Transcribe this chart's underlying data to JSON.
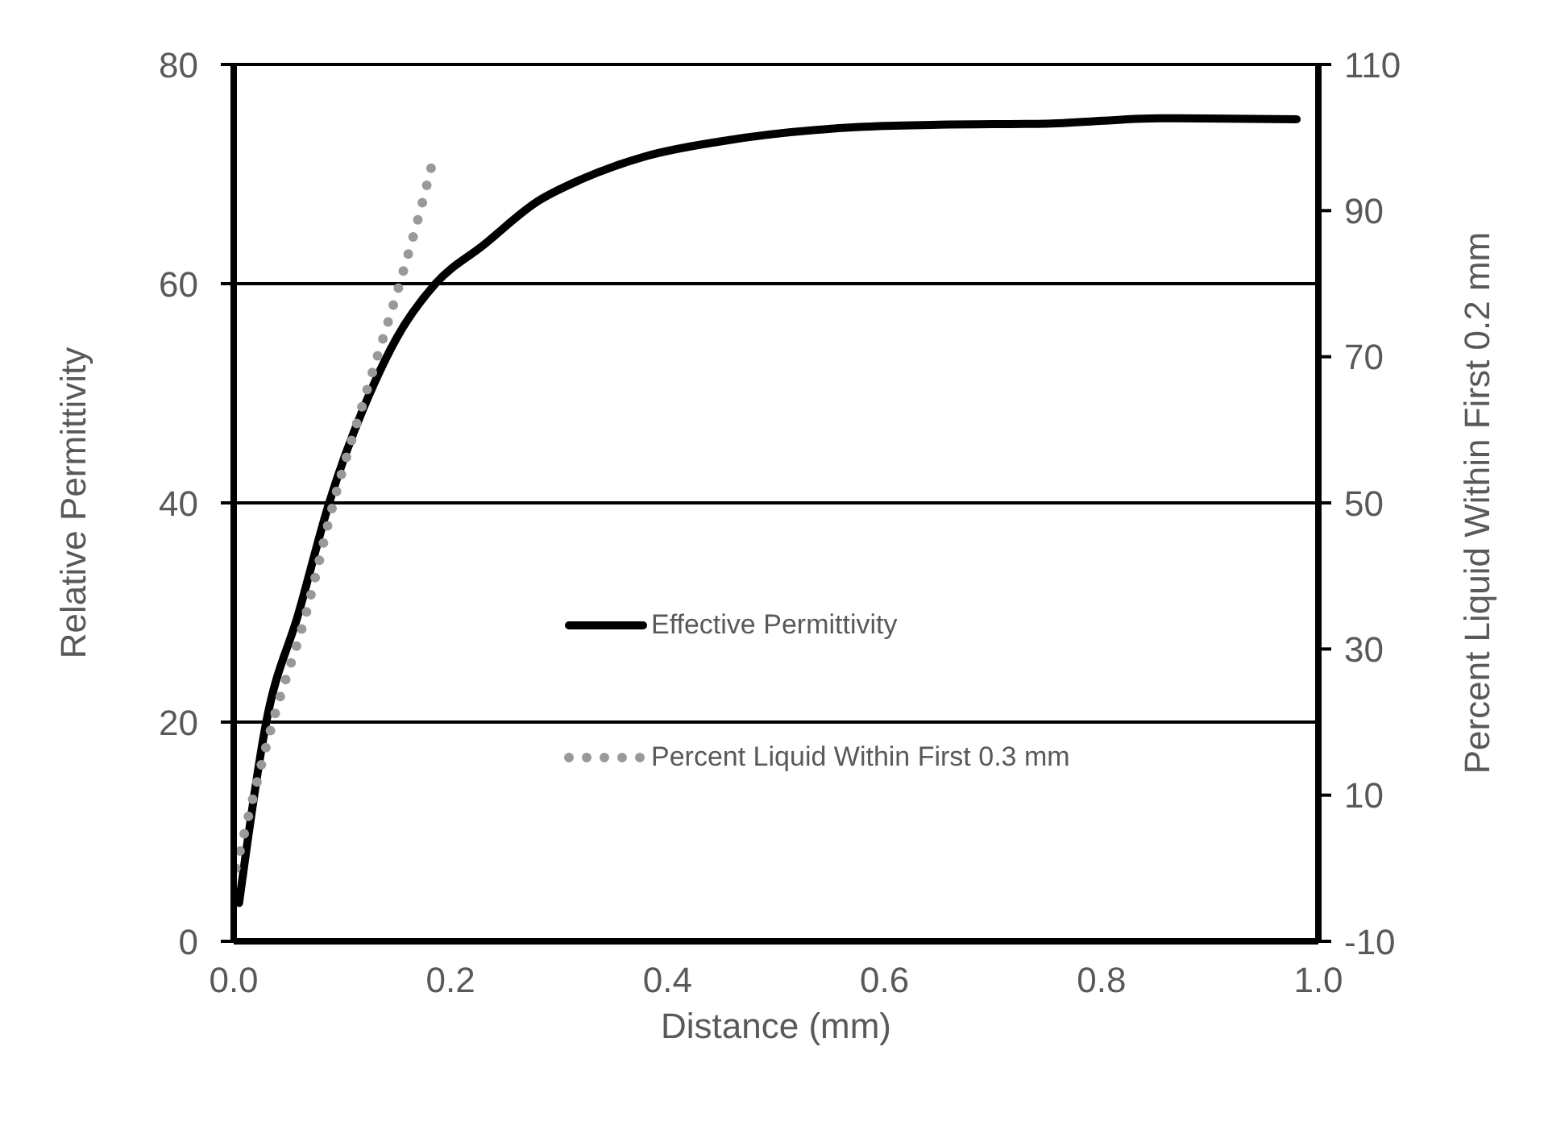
{
  "chart_data": {
    "type": "line",
    "xlabel": "Distance (mm)",
    "ylabel": "Relative Permittivity",
    "y2label": "Percent Liquid Within First 0.2 mm",
    "xlim": [
      0,
      1
    ],
    "xticks": [
      {
        "value": 0,
        "label": "0.0"
      },
      {
        "value": 0.2,
        "label": "0.2"
      },
      {
        "value": 0.4,
        "label": "0.4"
      },
      {
        "value": 0.6,
        "label": "0.6"
      },
      {
        "value": 0.8,
        "label": "0.8"
      },
      {
        "value": 1,
        "label": "1.0"
      }
    ],
    "ylim": [
      0,
      80
    ],
    "yticks": [
      0,
      20,
      40,
      60,
      80
    ],
    "y2lim": [
      -10,
      110
    ],
    "y2ticks": [
      -10,
      10,
      30,
      50,
      70,
      90,
      110
    ],
    "grid": "y",
    "legend": "center",
    "marker": "none",
    "series": [
      {
        "name": "Effective Permittivity",
        "color": "#000000",
        "line_style": "solid",
        "x": [
          0.005,
          0.03,
          0.06,
          0.088,
          0.13,
          0.15,
          0.186,
          0.23,
          0.28,
          0.32,
          0.379,
          0.45,
          0.577,
          0.65,
          0.75,
          0.855,
          0.98
        ],
        "values": [
          3.5,
          20,
          30,
          40,
          51,
          55,
          60,
          63.5,
          67.5,
          69.5,
          71.6,
          73,
          74.3,
          74.5,
          74.6,
          75.1,
          75
        ]
      },
      {
        "name": "Percent Liquid Within First 0.3 mm",
        "color": "#999999",
        "axis": "y2",
        "line_style": "dotted",
        "x": [
          0.002,
          0.036,
          0.067,
          0.092,
          0.122,
          0.153,
          0.172,
          0.184
        ],
        "values": [
          0,
          20,
          35,
          50,
          65,
          80,
          90,
          97
        ]
      }
    ]
  }
}
